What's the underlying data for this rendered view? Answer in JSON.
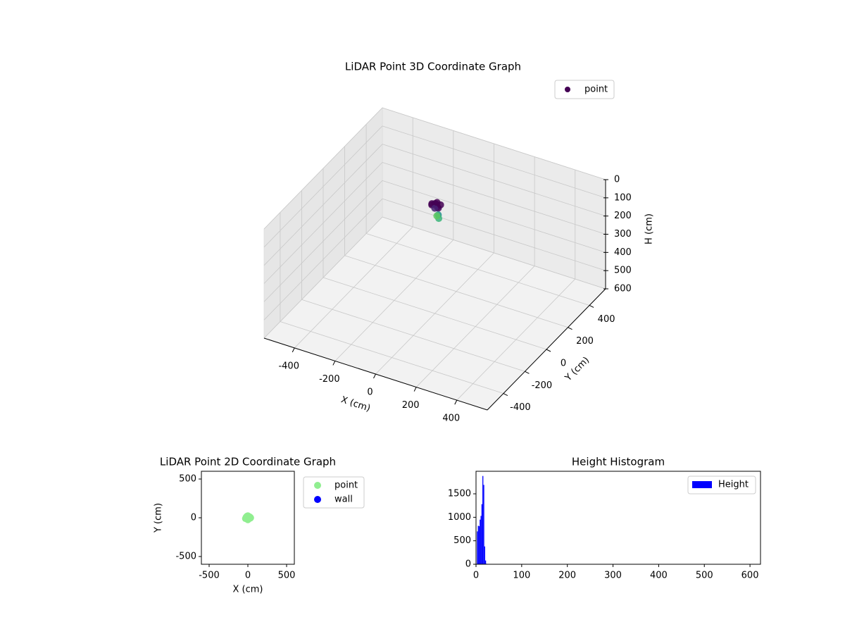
{
  "chart_data": [
    {
      "type": "scatter3d",
      "title": "LiDAR Point 3D Coordinate Graph",
      "x_label": "X (cm)",
      "y_label": "Y (cm)",
      "z_label": "H (cm)",
      "xlim": [
        -550,
        550
      ],
      "ylim": [
        -550,
        550
      ],
      "zlim": [
        0,
        600
      ],
      "z_inverted": true,
      "xticks": [
        -400,
        -200,
        0,
        200,
        400
      ],
      "yticks": [
        -400,
        -200,
        0,
        200,
        400
      ],
      "zticks": [
        0,
        100,
        200,
        300,
        400,
        500,
        600
      ],
      "grid": true,
      "legend": "upper right",
      "series": [
        {
          "name": "point",
          "color": "#440154",
          "x": [
            -20,
            -10,
            0,
            10,
            20,
            -15,
            5,
            15,
            -5,
            25,
            30,
            10
          ],
          "y": [
            10,
            20,
            15,
            5,
            -5,
            0,
            -10,
            25,
            30,
            -15,
            -20,
            0
          ],
          "z": [
            10,
            12,
            8,
            15,
            11,
            9,
            14,
            13,
            10,
            40,
            55,
            60
          ],
          "colors": [
            "#440154",
            "#440154",
            "#46085c",
            "#440154",
            "#46085c",
            "#440154",
            "#482173",
            "#440154",
            "#440154",
            "#21918c",
            "#3bb57a",
            "#5ec962"
          ]
        }
      ]
    },
    {
      "type": "scatter",
      "title": "LiDAR Point 2D Coordinate Graph",
      "x_label": "X (cm)",
      "y_label": "Y (cm)",
      "xlim": [
        -600,
        600
      ],
      "ylim": [
        -600,
        600
      ],
      "xticks": [
        -500,
        0,
        500
      ],
      "yticks": [
        -500,
        0,
        500
      ],
      "legend": "outside right",
      "series": [
        {
          "name": "point",
          "color": "#90ee90",
          "x": [
            -20,
            -10,
            0,
            10,
            20,
            30,
            -25,
            -15,
            5,
            15,
            25,
            -5,
            0,
            35,
            -30
          ],
          "y": [
            10,
            20,
            25,
            15,
            5,
            -5,
            0,
            -15,
            -20,
            -10,
            10,
            5,
            -25,
            0,
            -10
          ]
        },
        {
          "name": "wall",
          "color": "#0000ff",
          "x": [],
          "y": []
        }
      ]
    },
    {
      "type": "histogram",
      "title": "Height Histogram",
      "legend": "upper right",
      "xlim": [
        0,
        623
      ],
      "ylim": [
        0,
        1980
      ],
      "xticks": [
        0,
        100,
        200,
        300,
        400,
        500,
        600
      ],
      "yticks": [
        0,
        500,
        1000,
        1500
      ],
      "bins": [
        2,
        4,
        6,
        8,
        10,
        12,
        14,
        16,
        18,
        20,
        22,
        24
      ],
      "series": [
        {
          "name": "Height",
          "color": "#0000ff",
          "values": [
            700,
            820,
            810,
            950,
            1030,
            1280,
            1880,
            1690,
            380,
            80,
            10
          ]
        }
      ]
    }
  ]
}
